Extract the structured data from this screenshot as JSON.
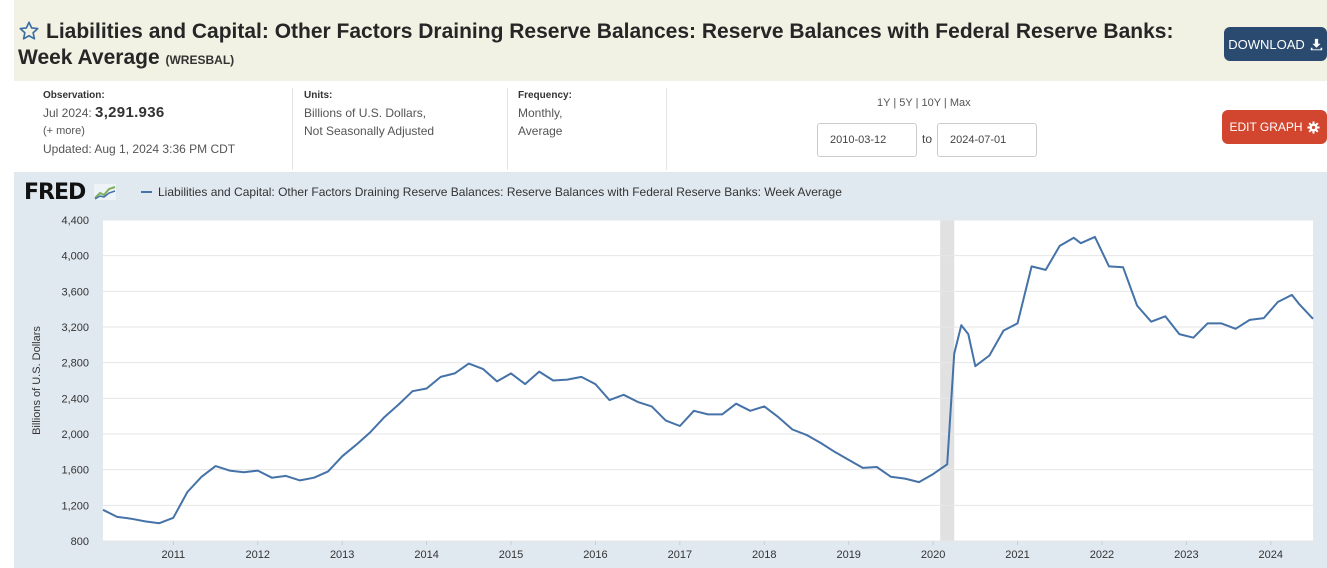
{
  "header": {
    "title": "Liabilities and Capital: Other Factors Draining Reserve Balances: Reserve Balances with Federal Reserve Banks: Week Average",
    "series_id": "(WRESBAL)",
    "download_label": "DOWNLOAD"
  },
  "observation": {
    "label": "Observation:",
    "period": "Jul 2024:",
    "value": "3,291.936",
    "more": "(+ more)",
    "updated": "Updated: Aug 1, 2024 3:36 PM CDT"
  },
  "units": {
    "label": "Units:",
    "line1": "Billions of U.S. Dollars,",
    "line2": "Not Seasonally Adjusted"
  },
  "frequency": {
    "label": "Frequency:",
    "line1": "Monthly,",
    "line2": "Average"
  },
  "range_links": [
    "1Y",
    "5Y",
    "10Y",
    "Max"
  ],
  "date_range": {
    "from": "2010-03-12",
    "to_label": "to",
    "to": "2024-07-01"
  },
  "edit_label": "EDIT GRAPH",
  "logo_text": "FRED",
  "colors": {
    "series": "#4572a7",
    "title_bg": "#f1f1e4",
    "download_bg": "#2b4a6f",
    "edit_bg": "#d2462f",
    "graph_bg": "#e1e9f0",
    "recession": "#e1e1e1"
  },
  "chart_data": {
    "type": "line",
    "title": "",
    "ylabel": "Billions of U.S. Dollars",
    "ylim": [
      800,
      4400
    ],
    "yticks": [
      "800",
      "1,200",
      "1,600",
      "2,000",
      "2,400",
      "2,800",
      "3,200",
      "3,600",
      "4,000",
      "4,400"
    ],
    "xticks": [
      "2011",
      "2012",
      "2013",
      "2014",
      "2015",
      "2016",
      "2017",
      "2018",
      "2019",
      "2020",
      "2021",
      "2022",
      "2023",
      "2024"
    ],
    "recession": {
      "start": "2020-02",
      "end": "2020-04"
    },
    "legend": "top-left",
    "series": [
      {
        "name": "Liabilities and Capital: Other Factors Draining Reserve Balances: Reserve Balances with Federal Reserve Banks: Week Average",
        "x": [
          "2010-03",
          "2010-05",
          "2010-07",
          "2010-09",
          "2010-11",
          "2011-01",
          "2011-03",
          "2011-05",
          "2011-07",
          "2011-09",
          "2011-11",
          "2012-01",
          "2012-03",
          "2012-05",
          "2012-07",
          "2012-09",
          "2012-11",
          "2013-01",
          "2013-03",
          "2013-05",
          "2013-07",
          "2013-09",
          "2013-11",
          "2014-01",
          "2014-03",
          "2014-05",
          "2014-07",
          "2014-09",
          "2014-11",
          "2015-01",
          "2015-03",
          "2015-05",
          "2015-07",
          "2015-09",
          "2015-11",
          "2016-01",
          "2016-03",
          "2016-05",
          "2016-07",
          "2016-09",
          "2016-11",
          "2017-01",
          "2017-03",
          "2017-05",
          "2017-07",
          "2017-09",
          "2017-11",
          "2018-01",
          "2018-03",
          "2018-05",
          "2018-07",
          "2018-09",
          "2018-11",
          "2019-01",
          "2019-03",
          "2019-05",
          "2019-07",
          "2019-09",
          "2019-11",
          "2020-01",
          "2020-03",
          "2020-04",
          "2020-05",
          "2020-06",
          "2020-07",
          "2020-09",
          "2020-11",
          "2021-01",
          "2021-03",
          "2021-05",
          "2021-07",
          "2021-09",
          "2021-10",
          "2021-12",
          "2022-02",
          "2022-04",
          "2022-06",
          "2022-08",
          "2022-10",
          "2022-12",
          "2023-02",
          "2023-04",
          "2023-06",
          "2023-08",
          "2023-10",
          "2023-12",
          "2024-02",
          "2024-04",
          "2024-05",
          "2024-07"
        ],
        "values": [
          1150,
          1070,
          1050,
          1020,
          1000,
          1060,
          1350,
          1520,
          1640,
          1590,
          1570,
          1590,
          1510,
          1530,
          1480,
          1510,
          1580,
          1750,
          1880,
          2020,
          2190,
          2330,
          2480,
          2510,
          2640,
          2680,
          2790,
          2730,
          2590,
          2680,
          2560,
          2700,
          2600,
          2610,
          2640,
          2560,
          2380,
          2440,
          2360,
          2310,
          2150,
          2090,
          2260,
          2220,
          2220,
          2340,
          2260,
          2310,
          2190,
          2050,
          1990,
          1900,
          1800,
          1710,
          1620,
          1630,
          1520,
          1500,
          1460,
          1550,
          1660,
          2900,
          3220,
          3120,
          2760,
          2880,
          3160,
          3240,
          3880,
          3840,
          4110,
          4200,
          4140,
          4210,
          3880,
          3870,
          3440,
          3260,
          3320,
          3120,
          3080,
          3240,
          3240,
          3180,
          3280,
          3300,
          3480,
          3560,
          3460,
          3292
        ]
      }
    ]
  }
}
